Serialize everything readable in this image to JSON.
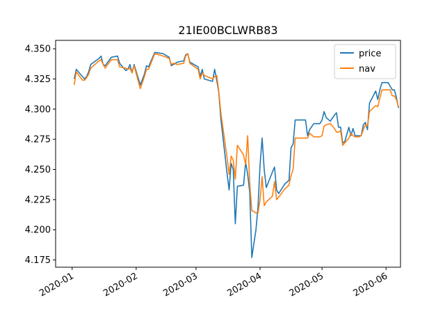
{
  "chart_data": {
    "type": "line",
    "title": "21IE00BCLWRB83",
    "xlabel": "",
    "ylabel": "",
    "x_axis": {
      "type": "date",
      "range": [
        "2019-12-24",
        "2020-06-08"
      ],
      "ticks": [
        {
          "date": "2020-01-01",
          "label": "2020-01"
        },
        {
          "date": "2020-02-01",
          "label": "2020-02"
        },
        {
          "date": "2020-03-01",
          "label": "2020-03"
        },
        {
          "date": "2020-04-01",
          "label": "2020-04"
        },
        {
          "date": "2020-05-01",
          "label": "2020-05"
        },
        {
          "date": "2020-06-01",
          "label": "2020-06"
        }
      ]
    },
    "y_axis": {
      "range": [
        4.169,
        4.357
      ],
      "ticks": [
        "4.175",
        "4.200",
        "4.225",
        "4.250",
        "4.275",
        "4.300",
        "4.325",
        "4.350"
      ]
    },
    "grid": false,
    "legend": {
      "placement": "top-right"
    },
    "series": [
      {
        "name": "price",
        "color": "#1f77b4",
        "points": [
          [
            "2020-01-02",
            4.325
          ],
          [
            "2020-01-03",
            4.333
          ],
          [
            "2020-01-06",
            4.327
          ],
          [
            "2020-01-07",
            4.325
          ],
          [
            "2020-01-08",
            4.327
          ],
          [
            "2020-01-09",
            4.331
          ],
          [
            "2020-01-10",
            4.337
          ],
          [
            "2020-01-14",
            4.342
          ],
          [
            "2020-01-15",
            4.344
          ],
          [
            "2020-01-16",
            4.337
          ],
          [
            "2020-01-17",
            4.336
          ],
          [
            "2020-01-20",
            4.343
          ],
          [
            "2020-01-23",
            4.344
          ],
          [
            "2020-01-24",
            4.338
          ],
          [
            "2020-01-27",
            4.332
          ],
          [
            "2020-01-28",
            4.333
          ],
          [
            "2020-01-29",
            4.337
          ],
          [
            "2020-01-30",
            4.33
          ],
          [
            "2020-01-31",
            4.337
          ],
          [
            "2020-02-03",
            4.32
          ],
          [
            "2020-02-05",
            4.329
          ],
          [
            "2020-02-06",
            4.336
          ],
          [
            "2020-02-07",
            4.335
          ],
          [
            "2020-02-10",
            4.347
          ],
          [
            "2020-02-14",
            4.346
          ],
          [
            "2020-02-17",
            4.343
          ],
          [
            "2020-02-18",
            4.336
          ],
          [
            "2020-02-19",
            4.337
          ],
          [
            "2020-02-21",
            4.339
          ],
          [
            "2020-02-24",
            4.34
          ],
          [
            "2020-02-25",
            4.345
          ],
          [
            "2020-02-26",
            4.346
          ],
          [
            "2020-02-27",
            4.339
          ],
          [
            "2020-03-02",
            4.335
          ],
          [
            "2020-03-03",
            4.327
          ],
          [
            "2020-03-04",
            4.333
          ],
          [
            "2020-03-05",
            4.325
          ],
          [
            "2020-03-09",
            4.323
          ],
          [
            "2020-03-10",
            4.333
          ],
          [
            "2020-03-11",
            4.324
          ],
          [
            "2020-03-12",
            4.314
          ],
          [
            "2020-03-13",
            4.292
          ],
          [
            "2020-03-16",
            4.247
          ],
          [
            "2020-03-17",
            4.233
          ],
          [
            "2020-03-18",
            4.255
          ],
          [
            "2020-03-19",
            4.25
          ],
          [
            "2020-03-20",
            4.205
          ],
          [
            "2020-03-21",
            4.236
          ],
          [
            "2020-03-24",
            4.237
          ],
          [
            "2020-03-25",
            4.256
          ],
          [
            "2020-03-26",
            4.246
          ],
          [
            "2020-03-27",
            4.231
          ],
          [
            "2020-03-28",
            4.177
          ],
          [
            "2020-03-30",
            4.2
          ],
          [
            "2020-03-31",
            4.219
          ],
          [
            "2020-04-01",
            4.254
          ],
          [
            "2020-04-02",
            4.276
          ],
          [
            "2020-04-03",
            4.25
          ],
          [
            "2020-04-04",
            4.235
          ],
          [
            "2020-04-07",
            4.248
          ],
          [
            "2020-04-08",
            4.252
          ],
          [
            "2020-04-09",
            4.233
          ],
          [
            "2020-04-10",
            4.23
          ],
          [
            "2020-04-13",
            4.238
          ],
          [
            "2020-04-15",
            4.241
          ],
          [
            "2020-04-16",
            4.268
          ],
          [
            "2020-04-17",
            4.271
          ],
          [
            "2020-04-18",
            4.291
          ],
          [
            "2020-04-22",
            4.291
          ],
          [
            "2020-04-23",
            4.291
          ],
          [
            "2020-04-24",
            4.278
          ],
          [
            "2020-04-25",
            4.283
          ],
          [
            "2020-04-27",
            4.288
          ],
          [
            "2020-04-30",
            4.288
          ],
          [
            "2020-05-01",
            4.291
          ],
          [
            "2020-05-02",
            4.298
          ],
          [
            "2020-05-03",
            4.293
          ],
          [
            "2020-05-05",
            4.29
          ],
          [
            "2020-05-07",
            4.295
          ],
          [
            "2020-05-08",
            4.297
          ],
          [
            "2020-05-09",
            4.285
          ],
          [
            "2020-05-10",
            4.285
          ],
          [
            "2020-05-11",
            4.272
          ],
          [
            "2020-05-12",
            4.273
          ],
          [
            "2020-05-13",
            4.279
          ],
          [
            "2020-05-14",
            4.285
          ],
          [
            "2020-05-15",
            4.278
          ],
          [
            "2020-05-16",
            4.284
          ],
          [
            "2020-05-17",
            4.278
          ],
          [
            "2020-05-19",
            4.278
          ],
          [
            "2020-05-20",
            4.278
          ],
          [
            "2020-05-21",
            4.287
          ],
          [
            "2020-05-22",
            4.289
          ],
          [
            "2020-05-23",
            4.283
          ],
          [
            "2020-05-24",
            4.305
          ],
          [
            "2020-05-27",
            4.315
          ],
          [
            "2020-05-28",
            4.308
          ],
          [
            "2020-05-29",
            4.316
          ],
          [
            "2020-05-30",
            4.322
          ],
          [
            "2020-06-01",
            4.322
          ],
          [
            "2020-06-02",
            4.322
          ],
          [
            "2020-06-03",
            4.319
          ],
          [
            "2020-06-04",
            4.316
          ],
          [
            "2020-06-05",
            4.316
          ],
          [
            "2020-06-06",
            4.31
          ],
          [
            "2020-06-07",
            4.301
          ]
        ]
      },
      {
        "name": "nav",
        "color": "#ff7f0e",
        "points": [
          [
            "2020-01-02",
            4.32
          ],
          [
            "2020-01-03",
            4.331
          ],
          [
            "2020-01-06",
            4.324
          ],
          [
            "2020-01-07",
            4.324
          ],
          [
            "2020-01-08",
            4.326
          ],
          [
            "2020-01-09",
            4.329
          ],
          [
            "2020-01-10",
            4.334
          ],
          [
            "2020-01-14",
            4.34
          ],
          [
            "2020-01-15",
            4.341
          ],
          [
            "2020-01-16",
            4.337
          ],
          [
            "2020-01-17",
            4.334
          ],
          [
            "2020-01-20",
            4.341
          ],
          [
            "2020-01-23",
            4.341
          ],
          [
            "2020-01-24",
            4.335
          ],
          [
            "2020-01-27",
            4.334
          ],
          [
            "2020-01-28",
            4.333
          ],
          [
            "2020-01-29",
            4.334
          ],
          [
            "2020-01-30",
            4.33
          ],
          [
            "2020-01-31",
            4.336
          ],
          [
            "2020-02-03",
            4.317
          ],
          [
            "2020-02-05",
            4.327
          ],
          [
            "2020-02-06",
            4.333
          ],
          [
            "2020-02-07",
            4.333
          ],
          [
            "2020-02-10",
            4.346
          ],
          [
            "2020-02-14",
            4.344
          ],
          [
            "2020-02-17",
            4.342
          ],
          [
            "2020-02-18",
            4.337
          ],
          [
            "2020-02-19",
            4.338
          ],
          [
            "2020-02-21",
            4.337
          ],
          [
            "2020-02-24",
            4.338
          ],
          [
            "2020-02-25",
            4.344
          ],
          [
            "2020-02-26",
            4.346
          ],
          [
            "2020-02-27",
            4.338
          ],
          [
            "2020-03-02",
            4.333
          ],
          [
            "2020-03-03",
            4.325
          ],
          [
            "2020-03-04",
            4.33
          ],
          [
            "2020-03-05",
            4.328
          ],
          [
            "2020-03-09",
            4.325
          ],
          [
            "2020-03-10",
            4.327
          ],
          [
            "2020-03-11",
            4.328
          ],
          [
            "2020-03-12",
            4.315
          ],
          [
            "2020-03-13",
            4.297
          ],
          [
            "2020-03-16",
            4.26
          ],
          [
            "2020-03-17",
            4.246
          ],
          [
            "2020-03-18",
            4.261
          ],
          [
            "2020-03-19",
            4.258
          ],
          [
            "2020-03-20",
            4.242
          ],
          [
            "2020-03-21",
            4.27
          ],
          [
            "2020-03-24",
            4.262
          ],
          [
            "2020-03-25",
            4.254
          ],
          [
            "2020-03-26",
            4.278
          ],
          [
            "2020-03-27",
            4.238
          ],
          [
            "2020-03-28",
            4.216
          ],
          [
            "2020-03-30",
            4.214
          ],
          [
            "2020-03-31",
            4.214
          ],
          [
            "2020-04-01",
            4.225
          ],
          [
            "2020-04-02",
            4.244
          ],
          [
            "2020-04-03",
            4.22
          ],
          [
            "2020-04-04",
            4.223
          ],
          [
            "2020-04-07",
            4.228
          ],
          [
            "2020-04-08",
            4.24
          ],
          [
            "2020-04-09",
            4.225
          ],
          [
            "2020-04-10",
            4.227
          ],
          [
            "2020-04-13",
            4.234
          ],
          [
            "2020-04-15",
            4.237
          ],
          [
            "2020-04-16",
            4.245
          ],
          [
            "2020-04-17",
            4.25
          ],
          [
            "2020-04-18",
            4.276
          ],
          [
            "2020-04-22",
            4.276
          ],
          [
            "2020-04-23",
            4.276
          ],
          [
            "2020-04-24",
            4.276
          ],
          [
            "2020-04-25",
            4.28
          ],
          [
            "2020-04-27",
            4.277
          ],
          [
            "2020-04-30",
            4.277
          ],
          [
            "2020-05-01",
            4.278
          ],
          [
            "2020-05-02",
            4.286
          ],
          [
            "2020-05-03",
            4.287
          ],
          [
            "2020-05-05",
            4.288
          ],
          [
            "2020-05-07",
            4.284
          ],
          [
            "2020-05-08",
            4.281
          ],
          [
            "2020-05-09",
            4.281
          ],
          [
            "2020-05-10",
            4.282
          ],
          [
            "2020-05-11",
            4.27
          ],
          [
            "2020-05-12",
            4.272
          ],
          [
            "2020-05-13",
            4.274
          ],
          [
            "2020-05-14",
            4.276
          ],
          [
            "2020-05-15",
            4.28
          ],
          [
            "2020-05-16",
            4.278
          ],
          [
            "2020-05-17",
            4.277
          ],
          [
            "2020-05-19",
            4.277
          ],
          [
            "2020-05-20",
            4.278
          ],
          [
            "2020-05-21",
            4.283
          ],
          [
            "2020-05-22",
            4.287
          ],
          [
            "2020-05-23",
            4.286
          ],
          [
            "2020-05-24",
            4.298
          ],
          [
            "2020-05-27",
            4.303
          ],
          [
            "2020-05-28",
            4.302
          ],
          [
            "2020-05-29",
            4.309
          ],
          [
            "2020-05-30",
            4.316
          ],
          [
            "2020-06-01",
            4.316
          ],
          [
            "2020-06-02",
            4.316
          ],
          [
            "2020-06-03",
            4.316
          ],
          [
            "2020-06-04",
            4.311
          ],
          [
            "2020-06-05",
            4.311
          ],
          [
            "2020-06-06",
            4.308
          ],
          [
            "2020-06-07",
            4.302
          ]
        ]
      }
    ]
  }
}
